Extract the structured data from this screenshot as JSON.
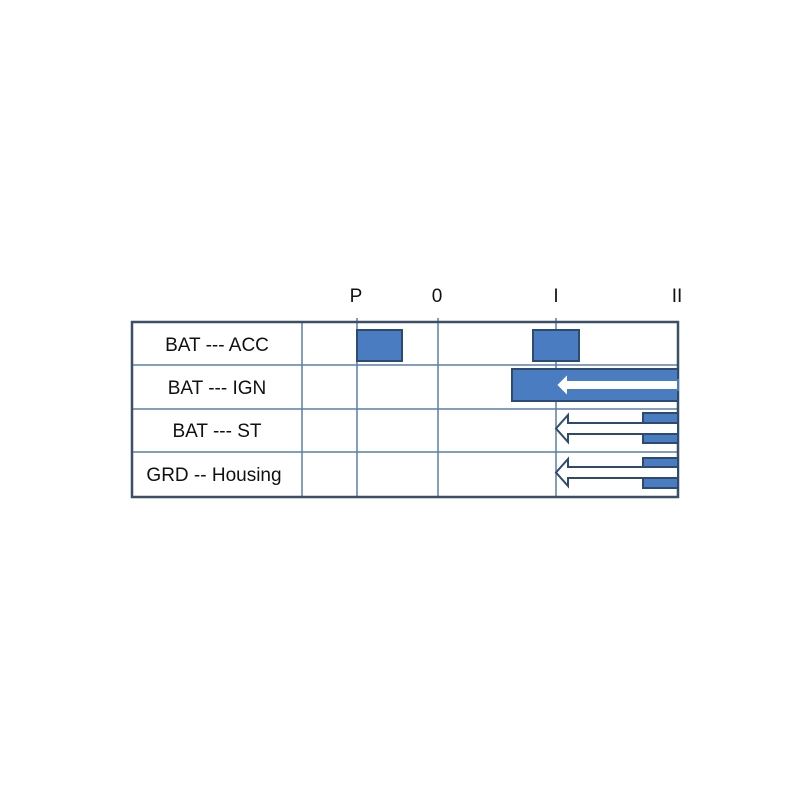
{
  "positions": [
    "P",
    "0",
    "I",
    "II"
  ],
  "rows": [
    {
      "label": "BAT --- ACC"
    },
    {
      "label": "BAT --- IGN"
    },
    {
      "label": "BAT --- ST"
    },
    {
      "label": "GRD -- Housing"
    }
  ],
  "colors": {
    "fill": "#4a7cc2",
    "stroke": "#2e4a6e",
    "grid": "#5a7fa8",
    "border": "#3b4f66"
  }
}
